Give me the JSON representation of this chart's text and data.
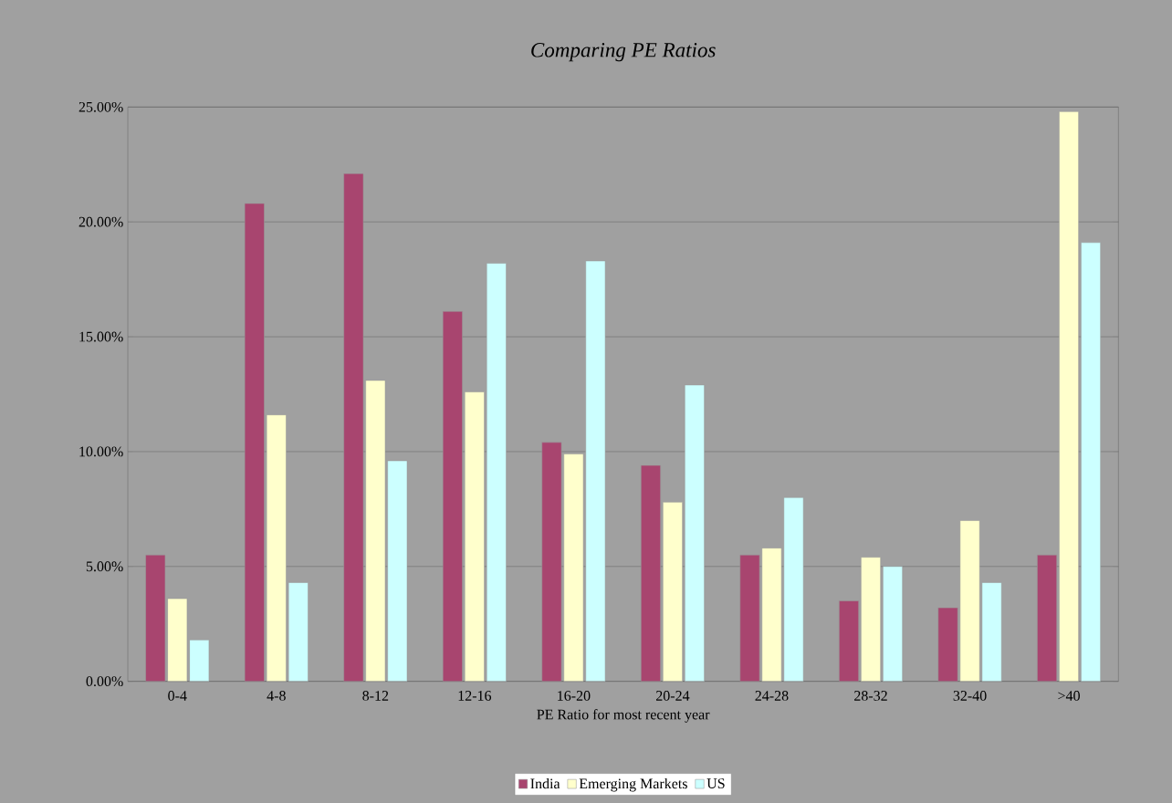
{
  "chart_data": {
    "type": "bar",
    "title": "Comparing PE Ratios",
    "xlabel": "PE Ratio for most recent year",
    "categories": [
      "0-4",
      "4-8",
      "8-12",
      "12-16",
      "16-20",
      "20-24",
      "24-28",
      "28-32",
      "32-40",
      ">40"
    ],
    "series": [
      {
        "name": "India",
        "color": "#a8456f",
        "values": [
          5.5,
          20.8,
          22.1,
          16.1,
          10.4,
          9.4,
          5.5,
          3.5,
          3.2,
          5.5
        ]
      },
      {
        "name": "Emerging Markets",
        "color": "#ffffcc",
        "values": [
          3.6,
          11.6,
          13.1,
          12.6,
          9.9,
          7.8,
          5.8,
          5.4,
          7.0,
          24.8
        ]
      },
      {
        "name": "US",
        "color": "#ccffff",
        "values": [
          1.8,
          4.3,
          9.6,
          18.2,
          18.3,
          12.9,
          8.0,
          5.0,
          4.3,
          19.1
        ]
      }
    ],
    "ylim": [
      0,
      25
    ],
    "yticks": [
      {
        "value": 0,
        "label": "0.00%"
      },
      {
        "value": 5,
        "label": "5.00%"
      },
      {
        "value": 10,
        "label": "10.00%"
      },
      {
        "value": 15,
        "label": "15.00%"
      },
      {
        "value": 20,
        "label": "20.00%"
      },
      {
        "value": 25,
        "label": "25.00%"
      }
    ],
    "grid": "y",
    "legend": "bottom"
  }
}
